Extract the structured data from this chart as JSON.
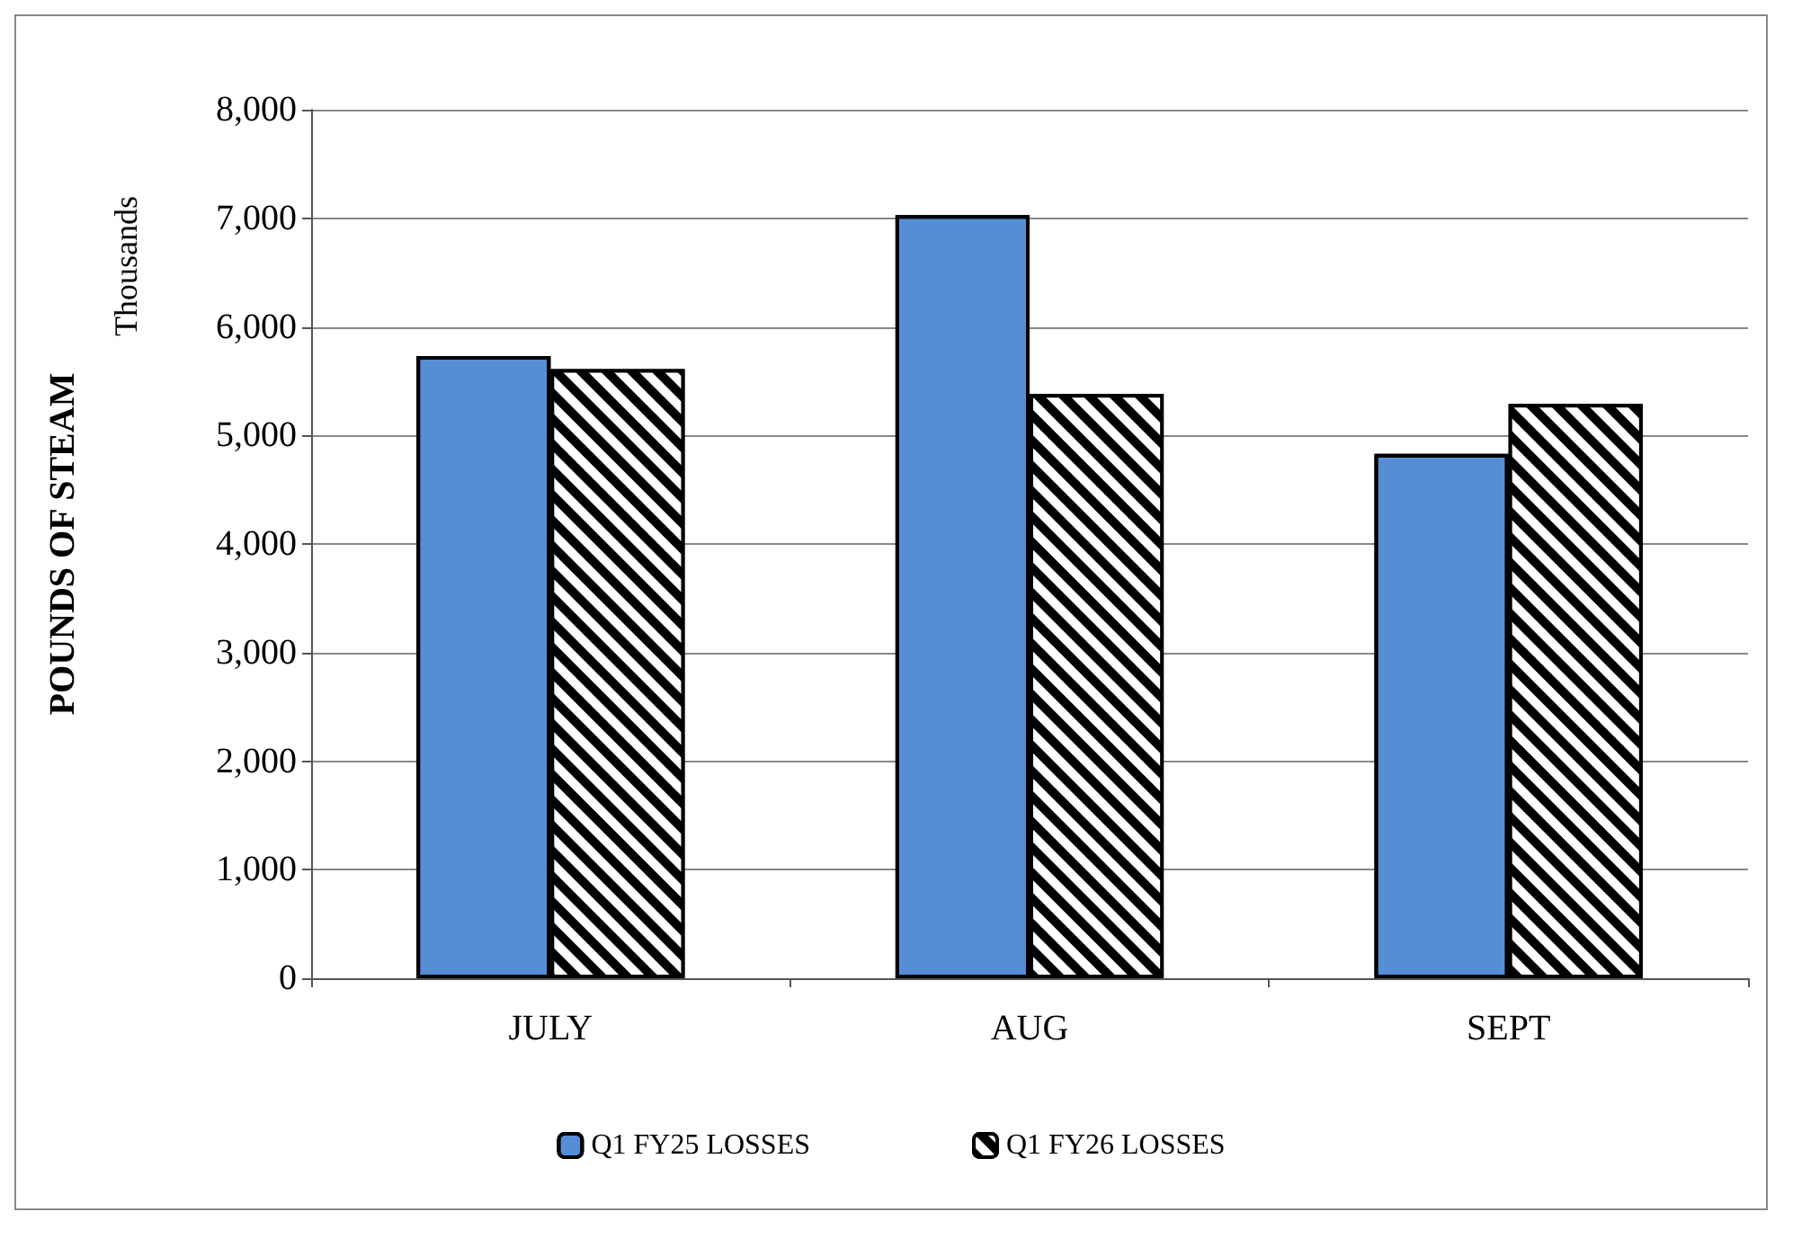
{
  "chart_data": {
    "type": "bar",
    "ylabel": "POUNDS OF STEAM",
    "annotations": [
      "Thousands"
    ],
    "categories": [
      "JULY",
      "AUG",
      "SEPT"
    ],
    "series": [
      {
        "name": "Q1 FY25 LOSSES",
        "color": "#558ed5",
        "values": [
          5730,
          7030,
          4830
        ]
      },
      {
        "name": "Q1 FY26 LOSSES",
        "color": "#000000",
        "values": [
          5610,
          5380,
          5290
        ]
      }
    ],
    "ylim": [
      0,
      8000
    ],
    "yticks": [
      0,
      {
        "value": 1000,
        "label": "1,000"
      },
      {
        "value": 2000,
        "label": "2,000"
      },
      {
        "value": 3000,
        "label": "3,000"
      },
      {
        "value": 4000,
        "label": "4,000"
      },
      {
        "value": 5000,
        "label": "5,000"
      },
      {
        "value": 6000,
        "label": "6,000"
      },
      {
        "value": 7000,
        "label": "7,000"
      },
      {
        "value": 8000,
        "label": "8,000"
      }
    ],
    "grid": "y",
    "legend": "bottom"
  }
}
